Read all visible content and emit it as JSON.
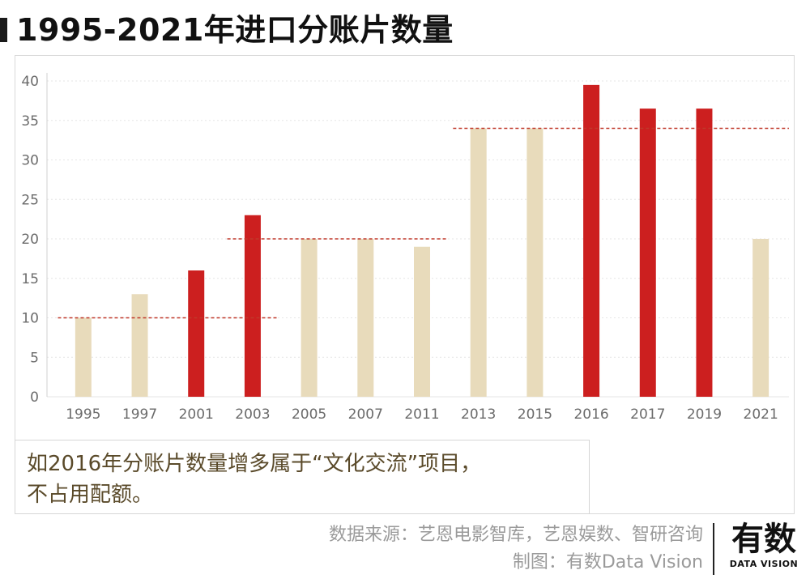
{
  "title": "1995-2021年进口分账片数量",
  "chart_data": {
    "type": "bar",
    "title": "1995-2021年进口分账片数量",
    "xlabel": "",
    "ylabel": "",
    "ylim": [
      0,
      40
    ],
    "yticks": [
      0,
      5,
      10,
      15,
      20,
      25,
      30,
      35,
      40
    ],
    "grid": true,
    "categories": [
      "1995",
      "1997",
      "2001",
      "2003",
      "2005",
      "2007",
      "2011",
      "2013",
      "2015",
      "2016",
      "2017",
      "2019",
      "2021"
    ],
    "values": [
      10,
      13,
      16,
      23,
      20,
      20,
      19,
      34,
      34,
      39.5,
      36.5,
      36.5,
      20
    ],
    "highlighted": [
      false,
      false,
      true,
      true,
      false,
      false,
      false,
      false,
      false,
      true,
      true,
      true,
      false
    ],
    "colors": {
      "normal": "#e8dbbb",
      "highlight": "#cc1f1f",
      "reference_line": "#c0392b",
      "grid": "#e6e6e6",
      "axis_text": "#6b6b6b"
    },
    "reference_lines": [
      {
        "value": 10,
        "from": "1995",
        "to": "2003"
      },
      {
        "value": 20,
        "from": "2003",
        "to": "2011"
      },
      {
        "value": 34,
        "from": "2013",
        "to": "2021"
      }
    ]
  },
  "annotation": {
    "line1": "如2016年分账片数量增多属于“文化交流”项目，",
    "line2": "不占用配额。"
  },
  "source": {
    "line1": "数据来源：艺恩电影智库，艺恩娱数、智研咨询",
    "line2": "制图：有数Data Vision"
  },
  "logo": {
    "main": "有数",
    "sub": "DATA VISION"
  }
}
